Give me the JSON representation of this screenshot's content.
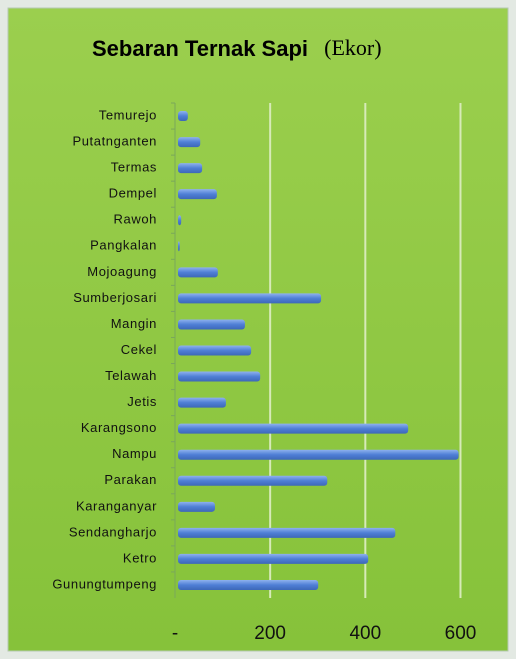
{
  "chart_data": {
    "type": "bar",
    "orientation": "horizontal",
    "title": "Sebaran Ternak Sapi",
    "subtitle": "(Ekor)",
    "categories": [
      "Temurejo",
      "Putatnganten",
      "Termas",
      "Dempel",
      "Rawoh",
      "Pangkalan",
      "Mojoagung",
      "Sumberjosari",
      "Mangin",
      "Cekel",
      "Telawah",
      "Jetis",
      "Karangsono",
      "Nampu",
      "Parakan",
      "Karanganyar",
      "Sendangharjo",
      "Ketro",
      "Gunungtumpeng"
    ],
    "values": [
      27,
      53,
      57,
      88,
      13,
      10,
      90,
      307,
      147,
      160,
      179,
      107,
      490,
      596,
      320,
      84,
      463,
      406,
      301
    ],
    "color": "#5b86d6",
    "xlim": [
      0,
      620
    ],
    "xticks": [
      {
        "value": 0,
        "label": "-"
      },
      200,
      400,
      600
    ],
    "grid": true
  }
}
